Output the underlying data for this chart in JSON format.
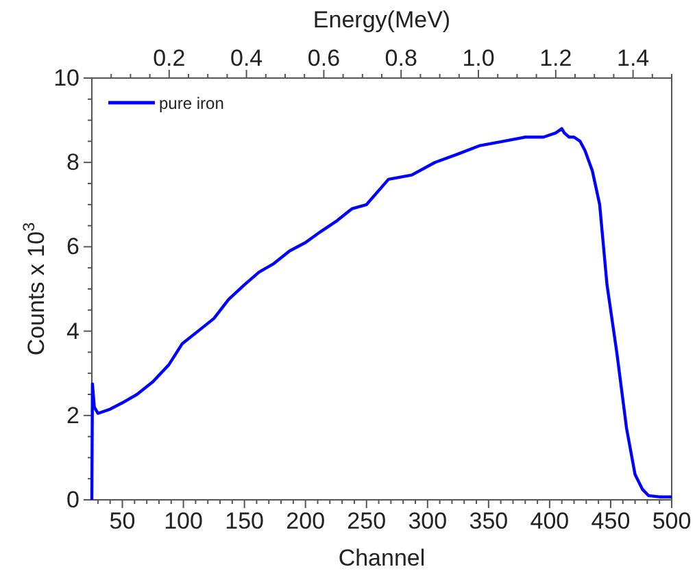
{
  "chart_data": {
    "type": "line",
    "xlabel": "Channel",
    "ylabel": "Counts x 10$^{3}$",
    "x2label": "Energy(MeV)",
    "xlim": [
      25,
      500
    ],
    "ylim": [
      0,
      10
    ],
    "x2lim": [
      0,
      1.5
    ],
    "xticks": [
      {
        "value": 30,
        "label": null
      },
      {
        "value": 40,
        "label": null
      },
      50,
      {
        "value": 60,
        "label": null
      },
      {
        "value": 70,
        "label": null
      },
      {
        "value": 80,
        "label": null
      },
      {
        "value": 90,
        "label": null
      },
      100,
      {
        "value": 110,
        "label": null
      },
      {
        "value": 120,
        "label": null
      },
      {
        "value": 130,
        "label": null
      },
      {
        "value": 140,
        "label": null
      },
      150,
      {
        "value": 160,
        "label": null
      },
      {
        "value": 170,
        "label": null
      },
      {
        "value": 180,
        "label": null
      },
      {
        "value": 190,
        "label": null
      },
      200,
      {
        "value": 210,
        "label": null
      },
      {
        "value": 220,
        "label": null
      },
      {
        "value": 230,
        "label": null
      },
      {
        "value": 240,
        "label": null
      },
      250,
      {
        "value": 260,
        "label": null
      },
      {
        "value": 270,
        "label": null
      },
      {
        "value": 280,
        "label": null
      },
      {
        "value": 290,
        "label": null
      },
      300,
      {
        "value": 310,
        "label": null
      },
      {
        "value": 320,
        "label": null
      },
      {
        "value": 330,
        "label": null
      },
      {
        "value": 340,
        "label": null
      },
      350,
      {
        "value": 360,
        "label": null
      },
      {
        "value": 370,
        "label": null
      },
      {
        "value": 380,
        "label": null
      },
      {
        "value": 390,
        "label": null
      },
      400,
      {
        "value": 410,
        "label": null
      },
      {
        "value": 420,
        "label": null
      },
      {
        "value": 430,
        "label": null
      },
      {
        "value": 440,
        "label": null
      },
      450,
      {
        "value": 460,
        "label": null
      },
      {
        "value": 470,
        "label": null
      },
      {
        "value": 480,
        "label": null
      },
      {
        "value": 490,
        "label": null
      },
      500
    ],
    "yticks": [
      0,
      {
        "value": 0.5,
        "label": null
      },
      {
        "value": 1,
        "label": null
      },
      {
        "value": 1.5,
        "label": null
      },
      2,
      {
        "value": 2.5,
        "label": null
      },
      {
        "value": 3,
        "label": null
      },
      {
        "value": 3.5,
        "label": null
      },
      4,
      {
        "value": 4.5,
        "label": null
      },
      {
        "value": 5,
        "label": null
      },
      {
        "value": 5.5,
        "label": null
      },
      6,
      {
        "value": 6.5,
        "label": null
      },
      {
        "value": 7,
        "label": null
      },
      {
        "value": 7.5,
        "label": null
      },
      8,
      {
        "value": 8.5,
        "label": null
      },
      {
        "value": 9,
        "label": null
      },
      {
        "value": 9.5,
        "label": null
      },
      10
    ],
    "x2ticks": [
      {
        "value": 0.05,
        "label": null
      },
      {
        "value": 0.1,
        "label": null
      },
      {
        "value": 0.15,
        "label": null
      },
      {
        "value": 0.2,
        "label": "0.2"
      },
      {
        "value": 0.25,
        "label": null
      },
      {
        "value": 0.3,
        "label": null
      },
      {
        "value": 0.35,
        "label": null
      },
      {
        "value": 0.4,
        "label": "0.4"
      },
      {
        "value": 0.45,
        "label": null
      },
      {
        "value": 0.5,
        "label": null
      },
      {
        "value": 0.55,
        "label": null
      },
      {
        "value": 0.6,
        "label": "0.6"
      },
      {
        "value": 0.65,
        "label": null
      },
      {
        "value": 0.7,
        "label": null
      },
      {
        "value": 0.75,
        "label": null
      },
      {
        "value": 0.8,
        "label": "0.8"
      },
      {
        "value": 0.85,
        "label": null
      },
      {
        "value": 0.9,
        "label": null
      },
      {
        "value": 0.95,
        "label": null
      },
      {
        "value": 1.0,
        "label": "1.0"
      },
      {
        "value": 1.05,
        "label": null
      },
      {
        "value": 1.1,
        "label": null
      },
      {
        "value": 1.15,
        "label": null
      },
      {
        "value": 1.2,
        "label": "1.2"
      },
      {
        "value": 1.25,
        "label": null
      },
      {
        "value": 1.3,
        "label": null
      },
      {
        "value": 1.35,
        "label": null
      },
      {
        "value": 1.4,
        "label": "1.4"
      },
      {
        "value": 1.45,
        "label": null
      },
      {
        "value": 1.5,
        "label": null
      }
    ],
    "legend": "top left",
    "line_style": "solid",
    "marker": "none",
    "series": [
      {
        "name": "pure iron",
        "color": "#0000ff",
        "x": [
          25,
          25.5,
          27,
          30,
          40,
          50,
          62,
          75,
          88,
          99,
          112,
          125,
          137,
          150,
          162,
          174,
          187,
          200,
          212,
          225,
          238,
          250,
          268,
          287,
          306,
          325,
          343,
          362,
          380,
          395,
          405,
          410,
          412,
          416,
          420,
          425,
          429,
          435,
          441,
          447,
          455,
          463,
          470,
          476,
          481,
          490,
          500
        ],
        "values": [
          0,
          2.75,
          2.2,
          2.05,
          2.15,
          2.3,
          2.5,
          2.8,
          3.2,
          3.7,
          4.0,
          4.3,
          4.75,
          5.1,
          5.4,
          5.6,
          5.9,
          6.1,
          6.35,
          6.6,
          6.9,
          7.0,
          7.6,
          7.7,
          8.0,
          8.2,
          8.4,
          8.5,
          8.6,
          8.6,
          8.7,
          8.8,
          8.7,
          8.6,
          8.6,
          8.5,
          8.28,
          7.8,
          7.0,
          5.1,
          3.5,
          1.7,
          0.6,
          0.25,
          0.1,
          0.07,
          0.07
        ]
      }
    ]
  }
}
